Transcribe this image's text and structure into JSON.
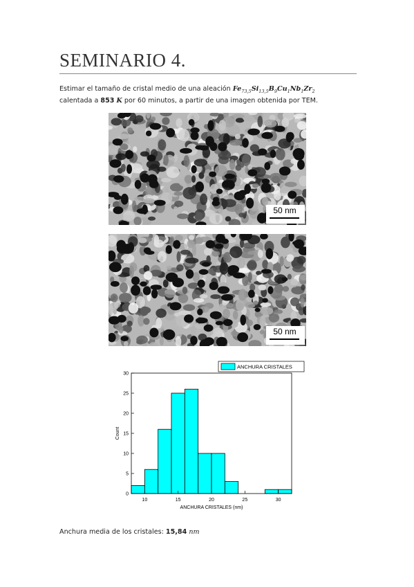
{
  "header": {
    "title": "SEMINARIO 4."
  },
  "intro": {
    "text_1": "Estimar el tamaño de cristal medio de una aleación",
    "formula": [
      {
        "symbol": "Fe",
        "sub": "73,5"
      },
      {
        "symbol": "Si",
        "sub": "13,5"
      },
      {
        "symbol": "B",
        "sub": "9"
      },
      {
        "symbol": "Cu",
        "sub": "1"
      },
      {
        "symbol": "Nb",
        "sub": "1"
      },
      {
        "symbol": "Zr",
        "sub": "2"
      }
    ],
    "text_2": "calentada a",
    "temperature": "853",
    "temperature_unit": "K",
    "text_3": "por 60 minutos, a partir de una imagen obtenida por TEM."
  },
  "images": [
    {
      "scale_label": "50 nm"
    },
    {
      "scale_label": "50 nm"
    }
  ],
  "chart_data": {
    "type": "histogram",
    "bins": [
      8,
      10,
      12,
      14,
      16,
      18,
      20,
      22,
      24,
      26,
      28,
      30,
      32
    ],
    "values": [
      2,
      6,
      16,
      25,
      26,
      10,
      10,
      3,
      0,
      0,
      1,
      1
    ],
    "series_name": "ANCHURA CRISTALES",
    "color": "#00ffff",
    "xlabel": "ANCHURA CRISTALES (nm)",
    "ylabel": "Count",
    "xlim": [
      8,
      32
    ],
    "xticks": [
      10,
      15,
      20,
      25,
      30
    ],
    "ylim": [
      0,
      30
    ],
    "yticks": [
      0,
      5,
      10,
      15,
      20,
      25,
      30
    ],
    "legend": "upper right"
  },
  "result": {
    "label": "Anchura media de los cristales:",
    "value": "15,84",
    "unit": "nm"
  }
}
